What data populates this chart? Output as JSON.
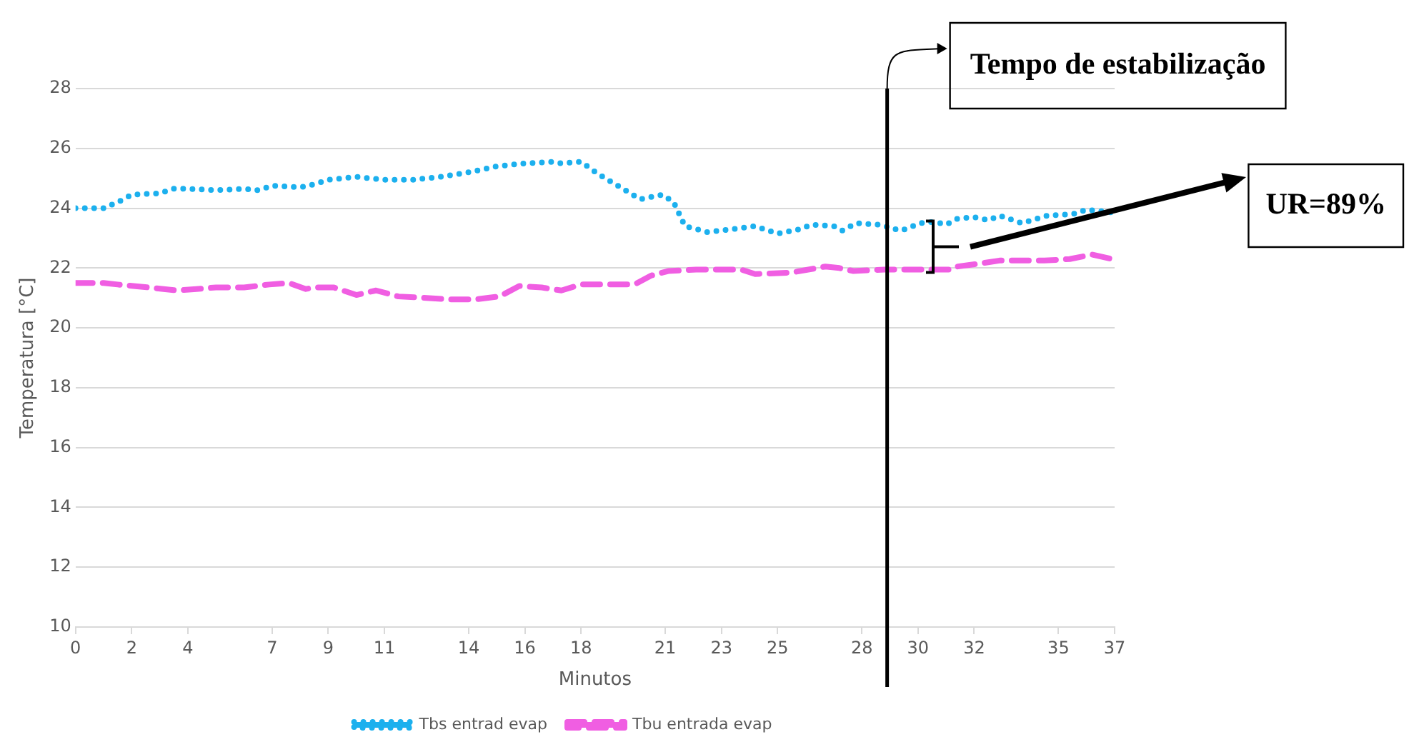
{
  "chart_data": {
    "type": "line",
    "xlabel": "Minutos",
    "ylabel": "Temperatura [°C]",
    "xlim": [
      0,
      37
    ],
    "xticks": [
      0,
      2,
      4,
      7,
      9,
      11,
      14,
      16,
      18,
      21,
      23,
      25,
      28,
      30,
      32,
      35,
      37
    ],
    "ylim": [
      10,
      28
    ],
    "yticks": [
      10,
      12,
      14,
      16,
      18,
      20,
      22,
      24,
      26,
      28
    ],
    "grid": "y",
    "legend": "bottom",
    "marker": "none",
    "series": [
      {
        "name": "Tbs entrad evap",
        "color": "#1cb0ee",
        "line_style": "dotted",
        "x": [
          0,
          0.5,
          1,
          1.5,
          2,
          3,
          3.5,
          4,
          5,
          6,
          6.5,
          7,
          8,
          8.5,
          9,
          10,
          11,
          12,
          13,
          14,
          15,
          16,
          17,
          17.3,
          18,
          18.6,
          19.4,
          20.1,
          20.9,
          21.3,
          21.7,
          22.5,
          23.4,
          24.2,
          25,
          25.8,
          26.2,
          27,
          27.3,
          27.8,
          28.6,
          29.4,
          30.1,
          30.6,
          31,
          31.4,
          32,
          32.5,
          32.9,
          33.7,
          34.6,
          35.5,
          36,
          37
        ],
        "values": [
          24,
          24,
          24,
          24.2,
          24.45,
          24.5,
          24.65,
          24.65,
          24.6,
          24.65,
          24.6,
          24.75,
          24.7,
          24.8,
          24.95,
          25.05,
          24.95,
          24.95,
          25.05,
          25.2,
          25.4,
          25.5,
          25.55,
          25.5,
          25.55,
          25.15,
          24.7,
          24.3,
          24.45,
          24.2,
          23.4,
          23.2,
          23.3,
          23.4,
          23.15,
          23.3,
          23.45,
          23.4,
          23.25,
          23.5,
          23.45,
          23.25,
          23.5,
          23.55,
          23.45,
          23.65,
          23.7,
          23.6,
          23.75,
          23.5,
          23.75,
          23.8,
          23.95,
          23.85
        ]
      },
      {
        "name": "Tbu entrada evap",
        "color": "#f05ee2",
        "line_style": "dashed",
        "x": [
          0,
          1,
          1.5,
          2.6,
          3.6,
          4.3,
          5,
          6,
          6.9,
          7.6,
          8.2,
          8.5,
          9.2,
          10,
          10.7,
          11.5,
          12.5,
          13.4,
          14.2,
          15.1,
          15.8,
          16.6,
          17.3,
          18,
          19,
          19.9,
          20.5,
          21.1,
          22.1,
          23,
          23.7,
          24.2,
          25.5,
          26.7,
          27.2,
          27.7,
          28.8,
          29.9,
          31.2,
          31.4,
          32.2,
          32.9,
          33.7,
          34.5,
          35.4,
          36.2,
          36.9
        ],
        "values": [
          21.5,
          21.5,
          21.45,
          21.35,
          21.25,
          21.3,
          21.35,
          21.35,
          21.45,
          21.5,
          21.3,
          21.35,
          21.35,
          21.1,
          21.25,
          21.05,
          21,
          20.95,
          20.95,
          21.05,
          21.4,
          21.35,
          21.25,
          21.45,
          21.45,
          21.45,
          21.75,
          21.9,
          21.95,
          21.95,
          21.95,
          21.8,
          21.85,
          22.05,
          22,
          21.9,
          21.95,
          21.95,
          21.95,
          22.05,
          22.15,
          22.25,
          22.25,
          22.25,
          22.3,
          22.45,
          22.3
        ]
      }
    ],
    "ref_lines": [
      {
        "axis": "x",
        "value": 28.9,
        "label": "Tempo de estabilização",
        "color": "#000000"
      }
    ],
    "annotations": [
      "UR=89%"
    ]
  }
}
